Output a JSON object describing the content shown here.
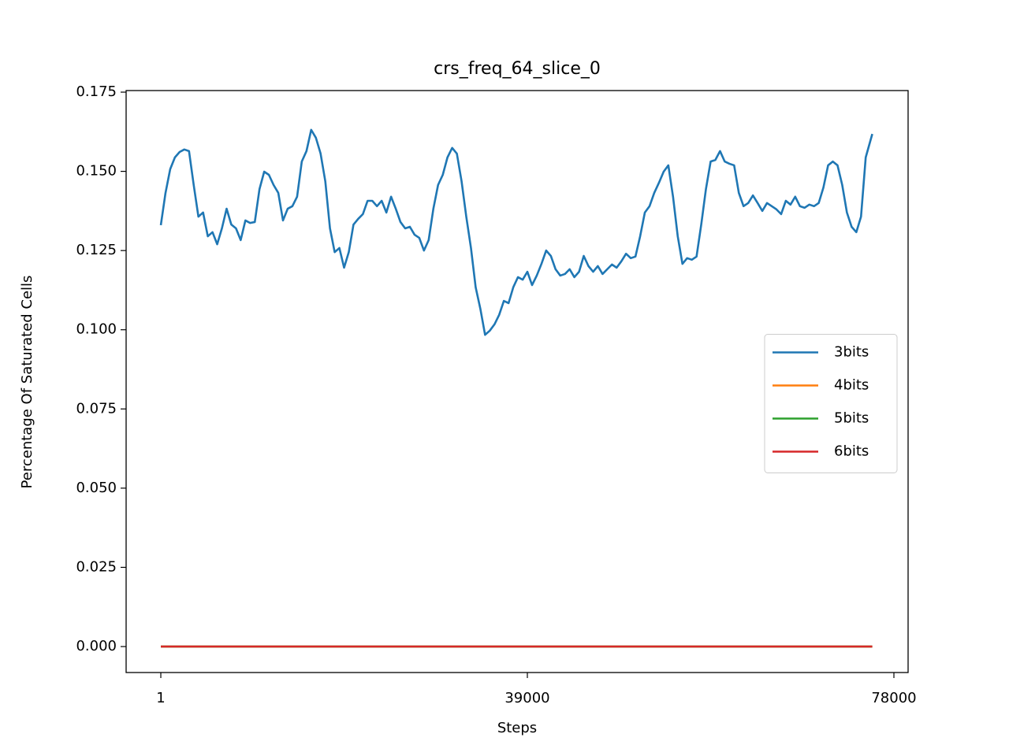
{
  "chart_data": {
    "type": "line",
    "title": "crs_freq_64_slice_0",
    "xlabel": "Steps",
    "ylabel": "Percentage Of Saturated Cells",
    "xlim": [
      -3690,
      79510
    ],
    "xticks": [
      1,
      39000,
      78000
    ],
    "ylim": [
      -0.0082,
      0.1755
    ],
    "yticks": [
      {
        "value": 0,
        "label": "0.000"
      },
      {
        "value": 0.025,
        "label": "0.025"
      },
      {
        "value": 0.05,
        "label": "0.050"
      },
      {
        "value": 0.075,
        "label": "0.075"
      },
      {
        "value": 0.1,
        "label": "0.100"
      },
      {
        "value": 0.125,
        "label": "0.125"
      },
      {
        "value": 0.15,
        "label": "0.150"
      },
      {
        "value": 0.175,
        "label": "0.175"
      }
    ],
    "grid": false,
    "legend": "center right",
    "series": [
      {
        "name": "3bits",
        "color": "#1f77b4",
        "x": [
          1,
          500,
          1000,
          1500,
          2000,
          2500,
          3000,
          3500,
          4000,
          4500,
          5000,
          5500,
          6000,
          6500,
          7000,
          7500,
          8000,
          8500,
          9000,
          9500,
          10000,
          10500,
          11000,
          11500,
          12000,
          12500,
          13000,
          13500,
          14000,
          14500,
          15000,
          15500,
          16000,
          16500,
          17000,
          17500,
          18000,
          18500,
          19000,
          19500,
          20000,
          20500,
          21000,
          21500,
          22000,
          22500,
          23000,
          23500,
          24000,
          24500,
          25000,
          25500,
          26000,
          26500,
          27000,
          27500,
          28000,
          28500,
          29000,
          29500,
          30000,
          30500,
          31000,
          31500,
          32000,
          32500,
          33000,
          33500,
          34000,
          34500,
          35000,
          35500,
          36000,
          36500,
          37000,
          37500,
          38000,
          38500,
          39000,
          39500,
          40000,
          40500,
          41000,
          41500,
          42000,
          42500,
          43000,
          43500,
          44000,
          44500,
          45000,
          45500,
          46000,
          46500,
          47000,
          47500,
          48000,
          48500,
          49000,
          49500,
          50000,
          50500,
          51000,
          51500,
          52000,
          52500,
          53000,
          53500,
          54000,
          54500,
          55000,
          55500,
          56000,
          56500,
          57000,
          57500,
          58000,
          58500,
          59000,
          59500,
          60000,
          60500,
          61000,
          61500,
          62000,
          62500,
          63000,
          63500,
          64000,
          64500,
          65000,
          65500,
          66000,
          66500,
          67000,
          67500,
          68000,
          68500,
          69000,
          69500,
          70000,
          70500,
          71000,
          71500,
          72000,
          72500,
          73000,
          73500,
          74000,
          74500,
          75000,
          75700
        ],
        "values": [
          0.133,
          0.1432,
          0.1507,
          0.1544,
          0.1561,
          0.1569,
          0.1564,
          0.1457,
          0.1357,
          0.137,
          0.1295,
          0.1308,
          0.127,
          0.132,
          0.1382,
          0.1332,
          0.132,
          0.1283,
          0.1345,
          0.1337,
          0.134,
          0.1444,
          0.1499,
          0.1489,
          0.1457,
          0.1432,
          0.1345,
          0.1382,
          0.139,
          0.142,
          0.1531,
          0.1564,
          0.1631,
          0.1606,
          0.1556,
          0.1469,
          0.132,
          0.1245,
          0.1258,
          0.1196,
          0.1245,
          0.1332,
          0.135,
          0.1365,
          0.1407,
          0.1407,
          0.139,
          0.1407,
          0.137,
          0.142,
          0.1382,
          0.134,
          0.132,
          0.1325,
          0.13,
          0.129,
          0.125,
          0.1283,
          0.1382,
          0.1457,
          0.1489,
          0.1544,
          0.1574,
          0.1556,
          0.1469,
          0.1357,
          0.1258,
          0.1134,
          0.1066,
          0.0984,
          0.0997,
          0.1017,
          0.1047,
          0.1091,
          0.1084,
          0.1134,
          0.1166,
          0.1158,
          0.1183,
          0.1141,
          0.1171,
          0.1208,
          0.125,
          0.1233,
          0.1191,
          0.1171,
          0.1176,
          0.1191,
          0.1166,
          0.1183,
          0.1233,
          0.1201,
          0.1183,
          0.1201,
          0.1176,
          0.1191,
          0.1206,
          0.1196,
          0.1216,
          0.124,
          0.1226,
          0.1231,
          0.1295,
          0.137,
          0.139,
          0.1432,
          0.1464,
          0.1499,
          0.1519,
          0.142,
          0.1295,
          0.1208,
          0.1226,
          0.1221,
          0.1231,
          0.1332,
          0.1444,
          0.1531,
          0.1536,
          0.1564,
          0.1531,
          0.1524,
          0.1519,
          0.1432,
          0.139,
          0.14,
          0.1424,
          0.14,
          0.1375,
          0.14,
          0.139,
          0.138,
          0.1365,
          0.1407,
          0.1395,
          0.142,
          0.139,
          0.1385,
          0.1395,
          0.139,
          0.14,
          0.1449,
          0.1519,
          0.1531,
          0.1519,
          0.1457,
          0.137,
          0.1325,
          0.1308,
          0.1357,
          0.1544,
          0.1618
        ]
      },
      {
        "name": "4bits",
        "color": "#ff7f0e",
        "x": [
          1,
          75700
        ],
        "values": [
          0,
          0
        ]
      },
      {
        "name": "5bits",
        "color": "#2ca02c",
        "x": [
          1,
          75700
        ],
        "values": [
          0,
          0
        ]
      },
      {
        "name": "6bits",
        "color": "#d62728",
        "x": [
          1,
          75700
        ],
        "values": [
          0,
          0
        ]
      }
    ]
  }
}
